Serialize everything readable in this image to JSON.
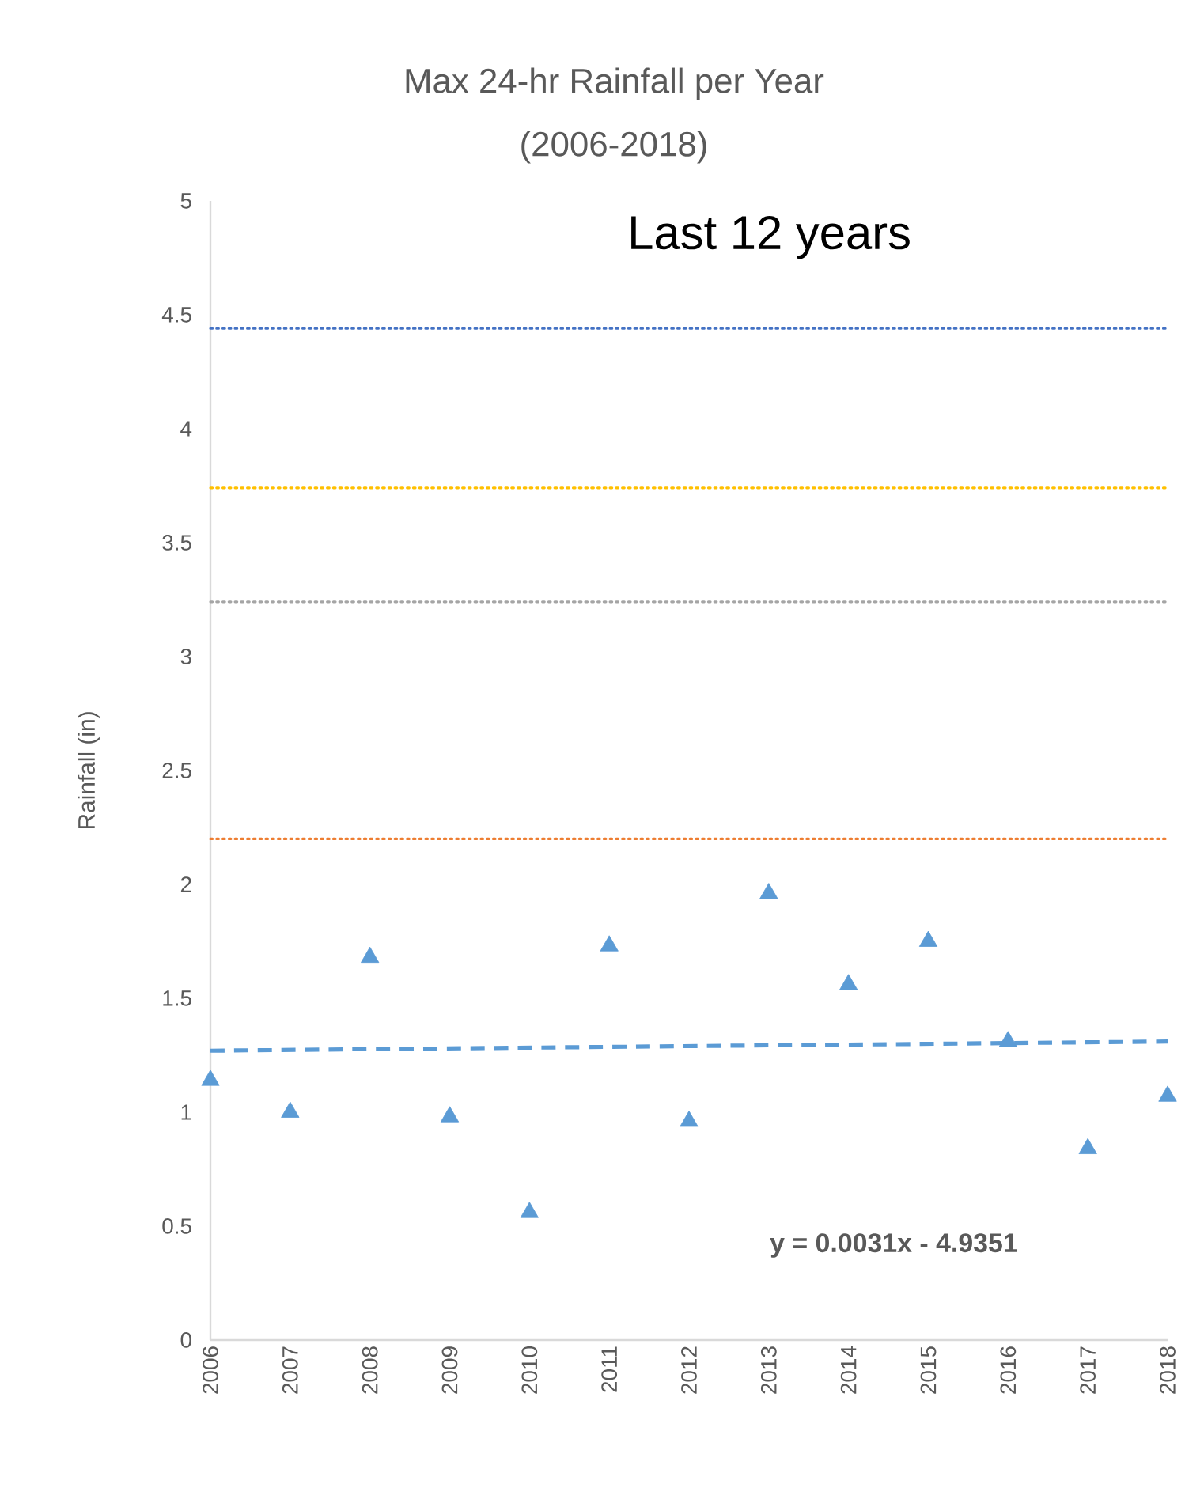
{
  "chart_data": {
    "type": "scatter",
    "title": "Max 24-hr Rainfall per Year",
    "subtitle": "(2006-2018)",
    "ylabel": "Rainfall (in)",
    "x": [
      2006,
      2007,
      2008,
      2009,
      2010,
      2011,
      2012,
      2013,
      2014,
      2015,
      2016,
      2017,
      2018
    ],
    "series": [
      {
        "color": "#5b9bd5",
        "marker": "triangle",
        "values": [
          1.14,
          1.0,
          1.68,
          0.98,
          0.56,
          1.73,
          0.96,
          1.96,
          1.56,
          1.75,
          1.31,
          0.84,
          1.07
        ]
      },
      {
        "type": "line",
        "color": "#5b9bd5",
        "line_style": "dashed",
        "marker": "none",
        "x": [
          2006,
          2018
        ],
        "values": [
          1.27,
          1.31
        ]
      }
    ],
    "xlim": [
      2006,
      2018
    ],
    "xticks": [
      2006,
      2007,
      2008,
      2009,
      2010,
      2011,
      2012,
      2013,
      2014,
      2015,
      2016,
      2017,
      2018
    ],
    "ylim": [
      0,
      5
    ],
    "yticks": [
      0,
      0.5,
      1,
      1.5,
      2,
      2.5,
      3,
      3.5,
      4,
      4.5,
      5
    ],
    "ref_lines": [
      {
        "axis": "y",
        "value": 4.44,
        "color": "#4472c4",
        "line_style": "dotted"
      },
      {
        "axis": "y",
        "value": 3.74,
        "color": "#ffc000",
        "line_style": "dotted"
      },
      {
        "axis": "y",
        "value": 3.24,
        "color": "#a5a5a5",
        "line_style": "dotted"
      },
      {
        "axis": "y",
        "value": 2.2,
        "color": "#ed7d31",
        "line_style": "dotted"
      }
    ],
    "annotations": [
      "Last 12 years",
      "y = 0.0031x - 4.9351"
    ],
    "grid": false
  }
}
